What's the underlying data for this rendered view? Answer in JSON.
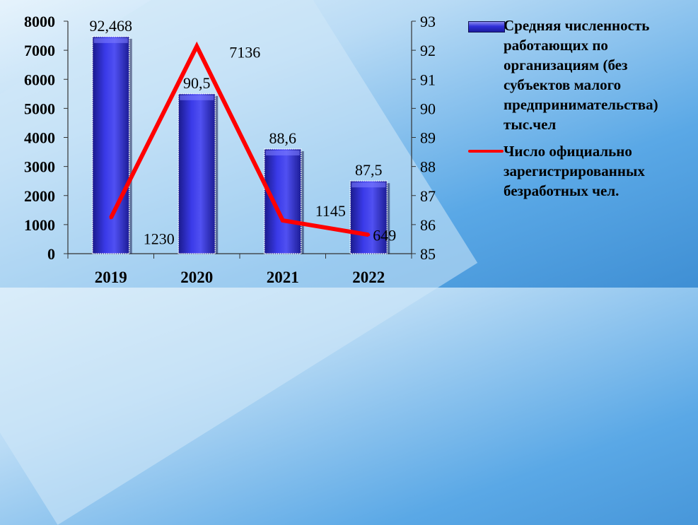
{
  "chart_data": {
    "type": "bar",
    "categories": [
      "2019",
      "2020",
      "2021",
      "2022"
    ],
    "series": [
      {
        "name": "Средняя численность работающих по организациям (без субъектов малого предпринимательства) тыс.чел",
        "type": "bar",
        "axis": "right",
        "values": [
          92.468,
          90.5,
          88.6,
          87.5
        ],
        "labels": [
          "92,468",
          "90,5",
          "88,6",
          "87,5"
        ],
        "color": "#2f2fd8"
      },
      {
        "name": "Число официально зарегистрированных безработных чел.",
        "type": "line",
        "axis": "left",
        "values": [
          1230,
          7136,
          1145,
          649
        ],
        "labels": [
          "1230",
          "7136",
          "1145",
          "649"
        ],
        "color": "#ff0000"
      }
    ],
    "y_left": {
      "ylim": [
        0,
        8000
      ],
      "ticks": [
        "0",
        "1000",
        "2000",
        "3000",
        "4000",
        "5000",
        "6000",
        "7000",
        "8000"
      ]
    },
    "y_right": {
      "ylim": [
        85,
        93
      ],
      "ticks": [
        "85",
        "86",
        "87",
        "88",
        "89",
        "90",
        "91",
        "92",
        "93"
      ]
    },
    "legend": "right",
    "grid": false
  },
  "colors": {
    "background": "#5aa8e6",
    "band_light": "#cfe7f8",
    "bar": "#2f2fd8",
    "line": "#ff0000"
  }
}
